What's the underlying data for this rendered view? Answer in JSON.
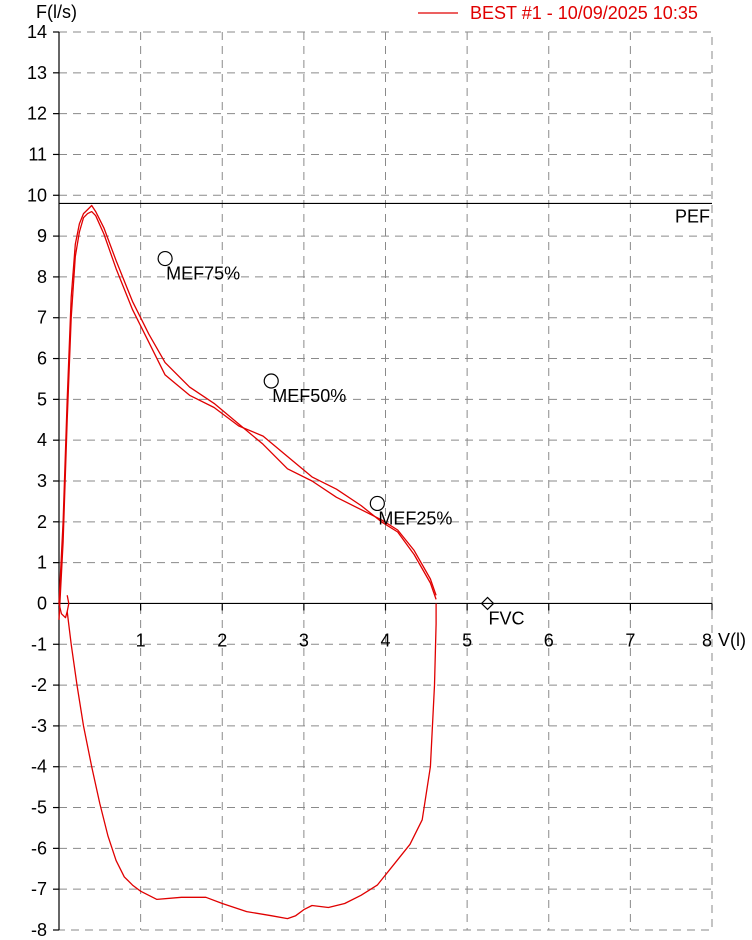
{
  "chart_data": {
    "type": "line",
    "title": "",
    "xlabel": "V(l)",
    "ylabel": "F(l/s)",
    "xlim": [
      0,
      8
    ],
    "ylim": [
      -8,
      14
    ],
    "x_ticks": [
      1,
      2,
      3,
      4,
      5,
      6,
      7,
      8
    ],
    "y_ticks": [
      14,
      13,
      12,
      11,
      10,
      9,
      8,
      7,
      6,
      5,
      4,
      3,
      2,
      1,
      0,
      -1,
      -2,
      -3,
      -4,
      -5,
      -6,
      -7,
      -8
    ],
    "grid": true,
    "legend_position": "top-right",
    "colors": {
      "series": "#e00000",
      "reference": "#000000"
    },
    "series": [
      {
        "name": "BEST #1 - 10/09/2025  10:35",
        "color": "#e00000",
        "expiratory_1": {
          "x": [
            0.0,
            0.05,
            0.1,
            0.15,
            0.2,
            0.25,
            0.3,
            0.35,
            0.4,
            0.45,
            0.55,
            0.7,
            0.9,
            1.1,
            1.3,
            1.6,
            1.9,
            2.2,
            2.5,
            2.8,
            3.1,
            3.4,
            3.7,
            3.95,
            4.15,
            4.35,
            4.55,
            4.62
          ],
          "y": [
            0.0,
            2.0,
            5.0,
            7.5,
            8.8,
            9.3,
            9.55,
            9.65,
            9.75,
            9.6,
            9.2,
            8.4,
            7.4,
            6.6,
            5.9,
            5.3,
            4.9,
            4.4,
            3.9,
            3.3,
            3.0,
            2.6,
            2.3,
            2.05,
            1.8,
            1.3,
            0.6,
            0.2
          ]
        },
        "expiratory_2": {
          "x": [
            0.0,
            0.05,
            0.1,
            0.15,
            0.2,
            0.25,
            0.3,
            0.35,
            0.4,
            0.45,
            0.55,
            0.7,
            0.9,
            1.1,
            1.3,
            1.6,
            1.9,
            2.2,
            2.5,
            2.8,
            3.1,
            3.4,
            3.7,
            3.95,
            4.15,
            4.35,
            4.55,
            4.62
          ],
          "y": [
            -0.4,
            1.5,
            4.5,
            7.0,
            8.5,
            9.1,
            9.45,
            9.55,
            9.6,
            9.5,
            9.05,
            8.2,
            7.2,
            6.4,
            5.6,
            5.1,
            4.8,
            4.35,
            4.1,
            3.6,
            3.1,
            2.8,
            2.4,
            2.0,
            1.75,
            1.2,
            0.5,
            0.1
          ]
        },
        "start_curl": {
          "x": [
            0.0,
            0.03,
            0.08,
            0.1,
            0.12,
            0.1
          ],
          "y": [
            0.0,
            -0.25,
            -0.35,
            -0.2,
            0.0,
            0.2
          ]
        },
        "inspiratory": {
          "x": [
            0.1,
            0.15,
            0.22,
            0.3,
            0.4,
            0.5,
            0.6,
            0.7,
            0.8,
            0.9,
            1.0,
            1.2,
            1.5,
            1.8,
            2.0,
            2.3,
            2.6,
            2.8,
            2.9,
            3.0,
            3.1,
            3.3,
            3.5,
            3.7,
            3.9,
            4.1,
            4.3,
            4.45,
            4.55,
            4.6,
            4.62,
            4.62
          ],
          "y": [
            -0.2,
            -1.0,
            -2.0,
            -3.0,
            -4.0,
            -4.9,
            -5.7,
            -6.3,
            -6.7,
            -6.9,
            -7.05,
            -7.25,
            -7.2,
            -7.2,
            -7.35,
            -7.55,
            -7.65,
            -7.72,
            -7.65,
            -7.5,
            -7.4,
            -7.45,
            -7.35,
            -7.15,
            -6.9,
            -6.4,
            -5.9,
            -5.3,
            -4.0,
            -2.0,
            -0.5,
            0.0
          ]
        }
      }
    ],
    "reference_lines": [
      {
        "label": "PEF",
        "y": 9.8
      }
    ],
    "markers": [
      {
        "label": "MEF75%",
        "x": 1.3,
        "y": 8.45,
        "shape": "circle"
      },
      {
        "label": "MEF50%",
        "x": 2.6,
        "y": 5.45,
        "shape": "circle"
      },
      {
        "label": "MEF25%",
        "x": 3.9,
        "y": 2.45,
        "shape": "circle"
      },
      {
        "label": "FVC",
        "x": 5.25,
        "y": 0.0,
        "shape": "diamond"
      }
    ]
  }
}
